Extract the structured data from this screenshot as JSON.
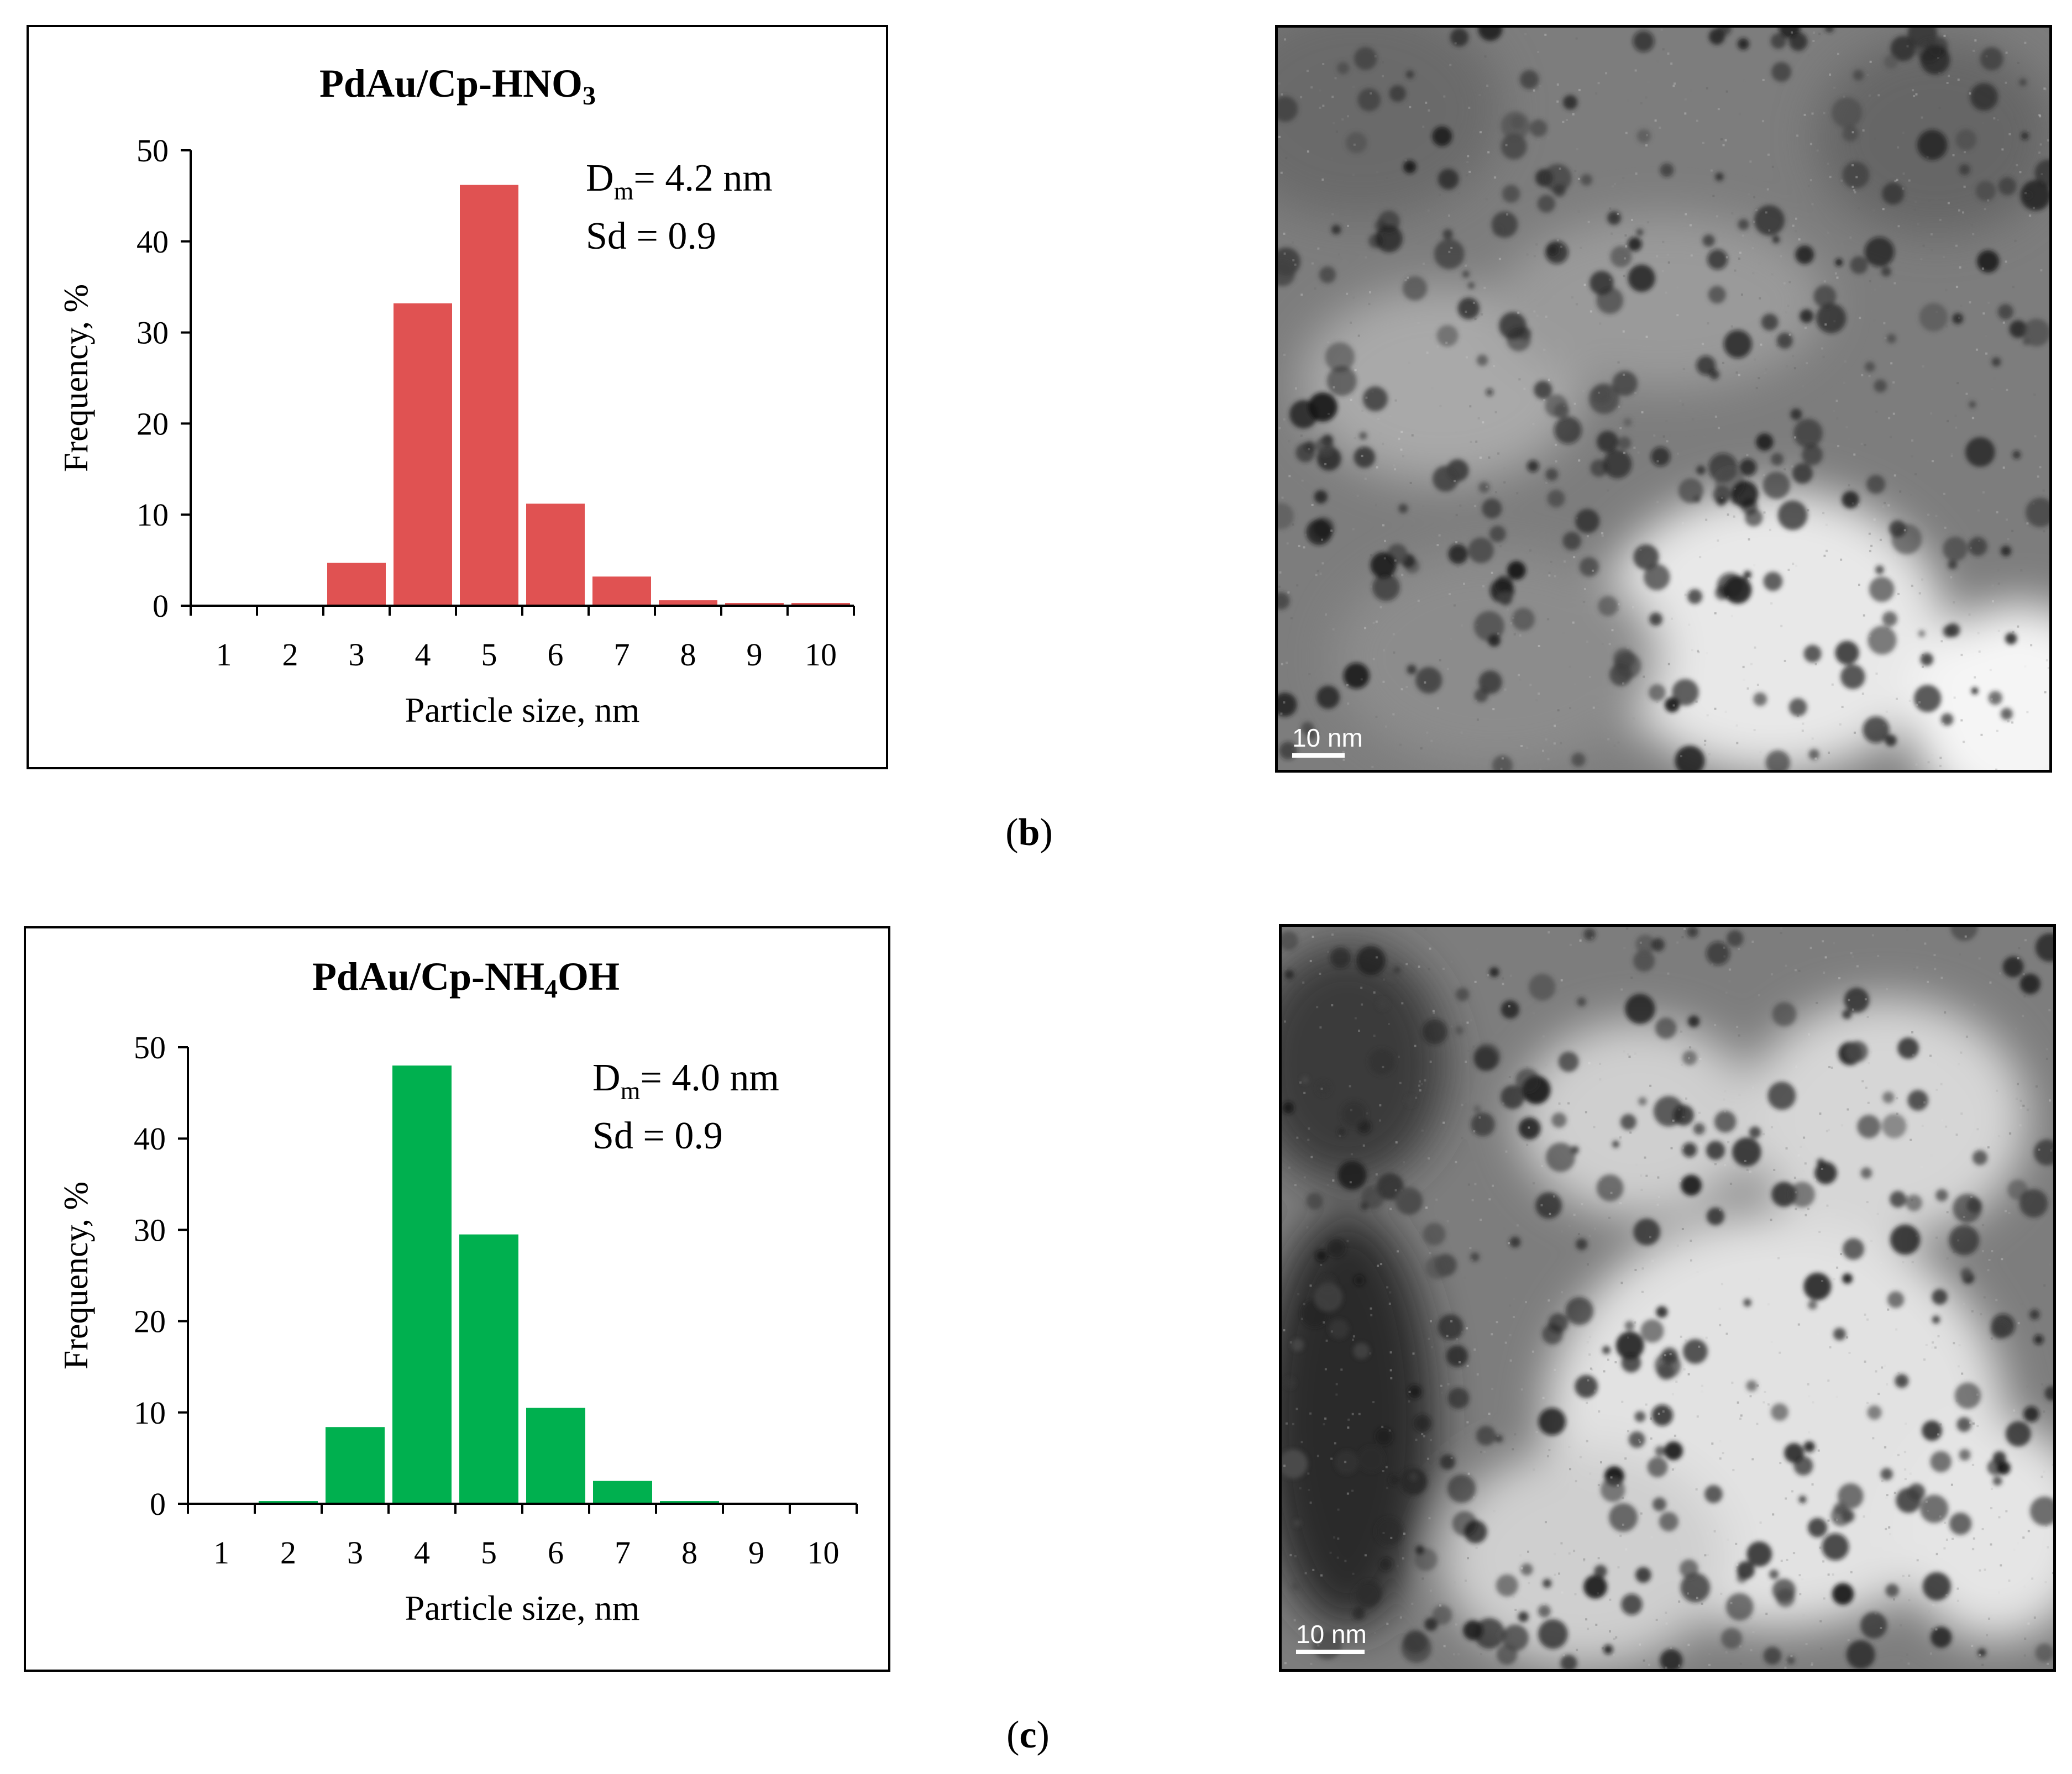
{
  "figure": {
    "panels": [
      {
        "label": "b",
        "tem_scale": "10 nm",
        "annotation": {
          "dm_prefix": "D",
          "dm_sub": "m",
          "dm_value": "= 4.2 nm",
          "sd": "Sd = 0.9"
        }
      },
      {
        "label": "c",
        "tem_scale": "10 nm",
        "annotation": {
          "dm_prefix": "D",
          "dm_sub": "m",
          "dm_value": "= 4.0 nm",
          "sd": "Sd = 0.9"
        }
      }
    ]
  },
  "colors": {
    "panel_b_bars": "#e05252",
    "panel_c_bars": "#00b04f"
  },
  "chart_data": [
    {
      "type": "bar",
      "title": "PdAu/Cp-HNO3",
      "title_parts": {
        "main": "PdAu/Cp-HNO",
        "sub": "3"
      },
      "xlabel": "Particle size,  nm",
      "ylabel": "Frequency,  %",
      "categories": [
        "1",
        "2",
        "3",
        "4",
        "5",
        "6",
        "7",
        "8",
        "9",
        "10"
      ],
      "values": [
        0,
        0,
        4.7,
        33.2,
        46.2,
        11.2,
        3.2,
        0.6,
        0.3,
        0.3
      ],
      "ylim": [
        0,
        50
      ],
      "yticks": [
        "0",
        "10",
        "20",
        "30",
        "40",
        "50"
      ],
      "grid": false,
      "color": "#e05252"
    },
    {
      "type": "bar",
      "title": "PdAu/Cp-NH4OH",
      "title_parts": {
        "main": "PdAu/Cp-NH",
        "sub": "4",
        "tail": "OH"
      },
      "xlabel": "Particle size,  nm",
      "ylabel": "Frequency,  %",
      "categories": [
        "1",
        "2",
        "3",
        "4",
        "5",
        "6",
        "7",
        "8",
        "9",
        "10"
      ],
      "values": [
        0,
        0.3,
        8.4,
        48.0,
        29.5,
        10.5,
        2.5,
        0.3,
        0,
        0
      ],
      "ylim": [
        0,
        50
      ],
      "yticks": [
        "0",
        "10",
        "20",
        "30",
        "40",
        "50"
      ],
      "grid": false,
      "color": "#00b04f"
    }
  ]
}
